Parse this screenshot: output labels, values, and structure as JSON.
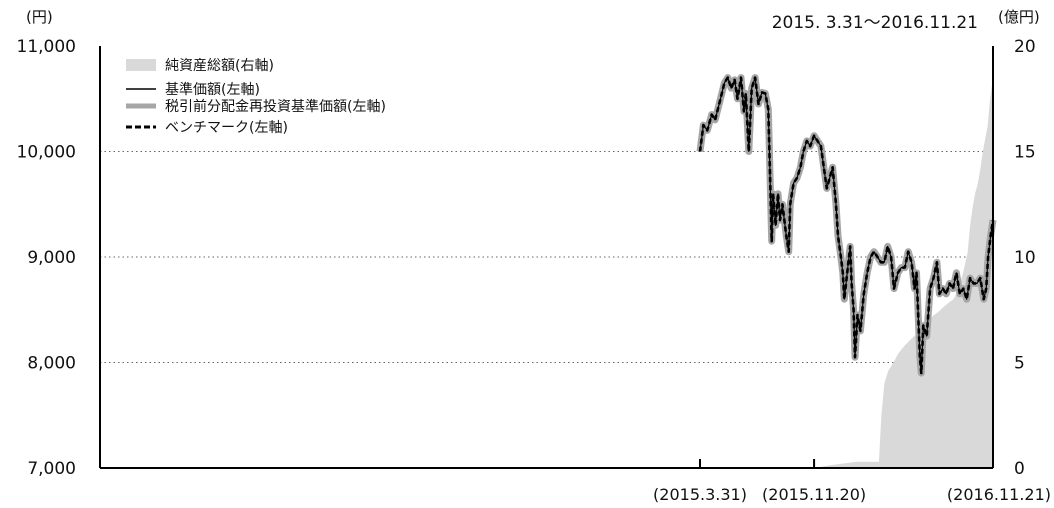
{
  "chart_data": {
    "type": "line",
    "period_label": "2015. 3.31～2016.11.21",
    "left_axis": {
      "unit": "(円)",
      "ylim": [
        7000,
        11000
      ],
      "ticks": [
        7000,
        8000,
        9000,
        10000,
        11000
      ],
      "tick_labels": [
        "7,000",
        "8,000",
        "9,000",
        "10,000",
        "11,000"
      ]
    },
    "right_axis": {
      "unit": "(億円)",
      "ylim": [
        0,
        20
      ],
      "ticks": [
        0,
        5,
        10,
        15,
        20
      ],
      "tick_labels": [
        "0",
        "5",
        "10",
        "15",
        "20"
      ]
    },
    "x_axis": {
      "start": "2015-03-31",
      "end": "2016-11-21",
      "date_labels": [
        {
          "date": "2015-03-31",
          "label": "(2015.3.31)"
        },
        {
          "date": "2015-11-20",
          "label": "(2015.11.20)"
        },
        {
          "date": "2016-11-21",
          "label": "(2016.11.21)"
        }
      ]
    },
    "grid": {
      "horizontal": true,
      "style": "dotted"
    },
    "legend": {
      "position": "top-left",
      "items": [
        {
          "label": "純資産総額(右軸)",
          "style": "area",
          "color": "#d9d9d9"
        },
        {
          "label": "基準価額(左軸)",
          "style": "line",
          "color": "#000000"
        },
        {
          "label": "税引前分配金再投資基準価額(左軸)",
          "style": "thick-line",
          "color": "#a6a6a6"
        },
        {
          "label": "ベンチマーク(左軸)",
          "style": "dashed",
          "color": "#000000"
        }
      ]
    },
    "series": [
      {
        "name": "基準価額(左軸)",
        "axis": "left",
        "points": [
          [
            "2015-03-31",
            10000
          ],
          [
            "2015-04-07",
            10250
          ],
          [
            "2015-04-15",
            10200
          ],
          [
            "2015-04-24",
            10350
          ],
          [
            "2015-05-01",
            10300
          ],
          [
            "2015-05-12",
            10500
          ],
          [
            "2015-05-20",
            10650
          ],
          [
            "2015-05-27",
            10700
          ],
          [
            "2015-06-03",
            10600
          ],
          [
            "2015-06-10",
            10680
          ],
          [
            "2015-06-16",
            10500
          ],
          [
            "2015-06-23",
            10700
          ],
          [
            "2015-06-29",
            10380
          ],
          [
            "2015-07-03",
            10550
          ],
          [
            "2015-07-09",
            10000
          ],
          [
            "2015-07-15",
            10600
          ],
          [
            "2015-07-22",
            10700
          ],
          [
            "2015-07-29",
            10450
          ],
          [
            "2015-08-05",
            10560
          ],
          [
            "2015-08-12",
            10550
          ],
          [
            "2015-08-18",
            10400
          ],
          [
            "2015-08-21",
            9900
          ],
          [
            "2015-08-25",
            9150
          ],
          [
            "2015-08-28",
            9600
          ],
          [
            "2015-09-02",
            9300
          ],
          [
            "2015-09-07",
            9600
          ],
          [
            "2015-09-11",
            9350
          ],
          [
            "2015-09-16",
            9500
          ],
          [
            "2015-09-24",
            9200
          ],
          [
            "2015-09-29",
            9050
          ],
          [
            "2015-10-02",
            9500
          ],
          [
            "2015-10-09",
            9700
          ],
          [
            "2015-10-16",
            9750
          ],
          [
            "2015-10-23",
            9850
          ],
          [
            "2015-10-29",
            10000
          ],
          [
            "2015-11-05",
            10100
          ],
          [
            "2015-11-12",
            10050
          ],
          [
            "2015-11-20",
            10150
          ],
          [
            "2015-11-27",
            10100
          ],
          [
            "2015-12-04",
            10050
          ],
          [
            "2015-12-10",
            9850
          ],
          [
            "2015-12-16",
            9650
          ],
          [
            "2015-12-22",
            9750
          ],
          [
            "2015-12-28",
            9850
          ],
          [
            "2016-01-04",
            9500
          ],
          [
            "2016-01-08",
            9200
          ],
          [
            "2016-01-14",
            9000
          ],
          [
            "2016-01-18",
            8850
          ],
          [
            "2016-01-21",
            8600
          ],
          [
            "2016-01-27",
            8850
          ],
          [
            "2016-02-02",
            9100
          ],
          [
            "2016-02-05",
            8750
          ],
          [
            "2016-02-09",
            8500
          ],
          [
            "2016-02-12",
            8050
          ],
          [
            "2016-02-17",
            8450
          ],
          [
            "2016-02-23",
            8300
          ],
          [
            "2016-03-01",
            8650
          ],
          [
            "2016-03-08",
            8850
          ],
          [
            "2016-03-15",
            9000
          ],
          [
            "2016-03-22",
            9050
          ],
          [
            "2016-03-29",
            9000
          ],
          [
            "2016-04-05",
            8950
          ],
          [
            "2016-04-12",
            8950
          ],
          [
            "2016-04-19",
            9100
          ],
          [
            "2016-04-26",
            9000
          ],
          [
            "2016-05-02",
            8700
          ],
          [
            "2016-05-10",
            8850
          ],
          [
            "2016-05-17",
            8900
          ],
          [
            "2016-05-24",
            8900
          ],
          [
            "2016-05-31",
            9050
          ],
          [
            "2016-06-07",
            8950
          ],
          [
            "2016-06-13",
            8700
          ],
          [
            "2016-06-17",
            8850
          ],
          [
            "2016-06-24",
            8050
          ],
          [
            "2016-06-27",
            7900
          ],
          [
            "2016-07-01",
            8350
          ],
          [
            "2016-07-08",
            8250
          ],
          [
            "2016-07-15",
            8700
          ],
          [
            "2016-07-22",
            8800
          ],
          [
            "2016-07-29",
            8950
          ],
          [
            "2016-08-03",
            8650
          ],
          [
            "2016-08-10",
            8700
          ],
          [
            "2016-08-17",
            8650
          ],
          [
            "2016-08-24",
            8750
          ],
          [
            "2016-08-31",
            8700
          ],
          [
            "2016-09-07",
            8850
          ],
          [
            "2016-09-14",
            8650
          ],
          [
            "2016-09-21",
            8700
          ],
          [
            "2016-09-28",
            8600
          ],
          [
            "2016-10-05",
            8800
          ],
          [
            "2016-10-12",
            8750
          ],
          [
            "2016-10-19",
            8750
          ],
          [
            "2016-10-26",
            8800
          ],
          [
            "2016-11-02",
            8600
          ],
          [
            "2016-11-07",
            8700
          ],
          [
            "2016-11-11",
            9000
          ],
          [
            "2016-11-16",
            9200
          ],
          [
            "2016-11-21",
            9350
          ]
        ]
      },
      {
        "name": "税引前分配金再投資基準価額(左軸)",
        "axis": "left",
        "same_as": "基準価額(左軸)"
      },
      {
        "name": "ベンチマーク(左軸)",
        "axis": "left",
        "same_as": "基準価額(左軸)"
      },
      {
        "name": "純資産総額(右軸)",
        "axis": "right",
        "points": [
          [
            "2015-11-20",
            0.0
          ],
          [
            "2015-12-15",
            0.1
          ],
          [
            "2016-01-15",
            0.2
          ],
          [
            "2016-02-15",
            0.3
          ],
          [
            "2016-03-15",
            0.3
          ],
          [
            "2016-04-01",
            0.3
          ],
          [
            "2016-04-06",
            2.5
          ],
          [
            "2016-04-12",
            4.0
          ],
          [
            "2016-04-20",
            4.6
          ],
          [
            "2016-05-01",
            5.0
          ],
          [
            "2016-05-10",
            5.4
          ],
          [
            "2016-05-20",
            5.7
          ],
          [
            "2016-06-01",
            6.0
          ],
          [
            "2016-06-15",
            6.3
          ],
          [
            "2016-06-25",
            5.5
          ],
          [
            "2016-07-01",
            6.2
          ],
          [
            "2016-07-10",
            6.8
          ],
          [
            "2016-07-20",
            7.2
          ],
          [
            "2016-08-01",
            7.4
          ],
          [
            "2016-08-10",
            7.6
          ],
          [
            "2016-08-20",
            7.8
          ],
          [
            "2016-09-01",
            8.0
          ],
          [
            "2016-09-10",
            8.4
          ],
          [
            "2016-09-20",
            9.2
          ],
          [
            "2016-09-30",
            10.2
          ],
          [
            "2016-10-05",
            11.5
          ],
          [
            "2016-10-10",
            12.3
          ],
          [
            "2016-10-15",
            13.0
          ],
          [
            "2016-10-20",
            13.4
          ],
          [
            "2016-10-25",
            14.0
          ],
          [
            "2016-10-31",
            15.0
          ],
          [
            "2016-11-05",
            15.6
          ],
          [
            "2016-11-10",
            16.2
          ],
          [
            "2016-11-15",
            17.5
          ],
          [
            "2016-11-21",
            18.5
          ]
        ]
      }
    ]
  }
}
